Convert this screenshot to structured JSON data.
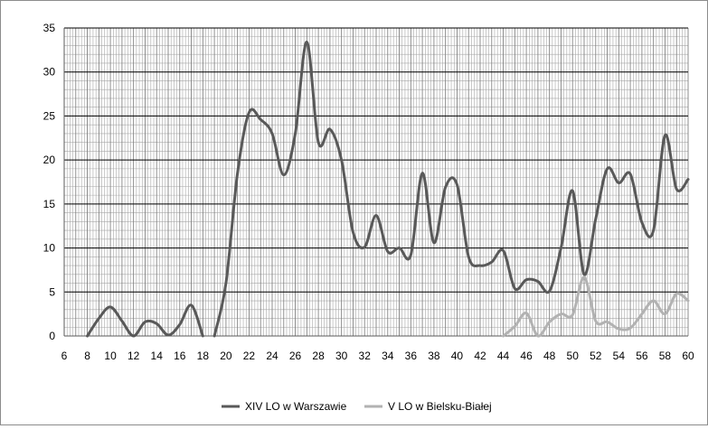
{
  "chart_data": {
    "type": "line",
    "title": "",
    "xlabel": "",
    "ylabel": "",
    "xlim": [
      6,
      60
    ],
    "ylim": [
      0,
      35
    ],
    "x_ticks": [
      "6",
      "8",
      "10",
      "12",
      "14",
      "16",
      "18",
      "20",
      "22",
      "24",
      "26",
      "28",
      "30",
      "32",
      "34",
      "36",
      "38",
      "40",
      "42",
      "44",
      "46",
      "48",
      "50",
      "52",
      "54",
      "56",
      "58",
      "60"
    ],
    "y_ticks": [
      "0",
      "5",
      "10",
      "15",
      "20",
      "25",
      "30",
      "35"
    ],
    "grid": "minor and major, both axes",
    "legend_position": "bottom",
    "series": [
      {
        "name": "XIV LO w Warszawie",
        "color": "#595959",
        "segments": [
          {
            "x": [
              8,
              9,
              10,
              11,
              12,
              13,
              14,
              15,
              16,
              17,
              18
            ],
            "y": [
              0,
              2.0,
              3.3,
              1.7,
              0,
              1.6,
              1.4,
              0.1,
              1.3,
              3.5,
              0
            ]
          },
          {
            "x": [
              19,
              20,
              21,
              22,
              23,
              24,
              25,
              26,
              27,
              28,
              29,
              30,
              31,
              32,
              33,
              34,
              35,
              36,
              37,
              38,
              39,
              40,
              41,
              42,
              43,
              44,
              45,
              46,
              47,
              48,
              49,
              50,
              51,
              52,
              53,
              54,
              55,
              56,
              57,
              58,
              59,
              60
            ],
            "y": [
              0,
              6.0,
              18.5,
              25.4,
              24.6,
              23.0,
              18.3,
              23.0,
              33.4,
              22.0,
              23.5,
              20.0,
              11.8,
              10.1,
              13.7,
              9.6,
              10.0,
              9.2,
              18.5,
              10.6,
              16.9,
              17.2,
              9.0,
              8.0,
              8.4,
              9.7,
              5.4,
              6.4,
              6.2,
              5.1,
              10.0,
              16.5,
              7.0,
              13.3,
              19.0,
              17.4,
              18.4,
              12.9,
              12.0,
              22.8,
              16.7,
              17.8
            ]
          }
        ]
      },
      {
        "name": "V LO w Bielsku-Białej",
        "color": "#b2b2b2",
        "segments": [
          {
            "x": [
              44,
              45,
              46,
              47,
              48,
              49,
              50,
              51,
              52,
              53,
              54,
              55,
              56,
              57,
              58,
              59,
              60
            ],
            "y": [
              0,
              1.1,
              2.6,
              0,
              1.6,
              2.5,
              2.4,
              6.7,
              1.7,
              1.6,
              0.8,
              0.9,
              2.5,
              4.0,
              2.5,
              4.8,
              4.0
            ]
          }
        ]
      }
    ]
  }
}
